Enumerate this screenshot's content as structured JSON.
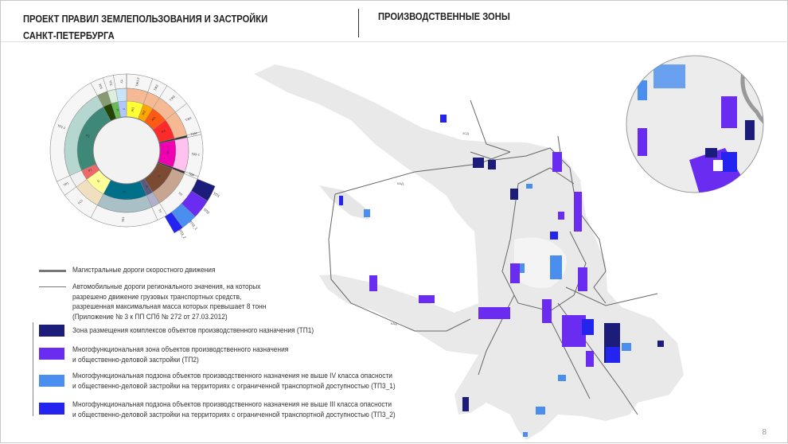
{
  "header": {
    "title_line1": "ПРОЕКТ ПРАВИЛ ЗЕМЛЕПОЛЬЗОВАНИЯ И ЗАСТРОЙКИ",
    "title_line2": "САНКТ-ПЕТЕРБУРГА",
    "section": "ПРОИЗВОДСТВЕННЫЕ ЗОНЫ"
  },
  "legend": {
    "road_express": "Магистральные дороги скоростного движения",
    "road_regional": [
      "Автомобильные дороги регионального значения, на которых",
      "разрешено движение грузовых транспортных средств,",
      "разрешенная максимальная масса которых превышает 8 тонн",
      "(Приложение № 3 к ПП СПб № 272 от 27.03.2012)"
    ],
    "zones": [
      {
        "color": "#1c1c7a",
        "lines": [
          "Зона размещения комплексов объектов производственного назначения (ТП1)"
        ]
      },
      {
        "color": "#6a2cf0",
        "lines": [
          "Многофункциональная зона объектов производственного назначения",
          "и общественно-деловой застройки (ТП2)"
        ]
      },
      {
        "color": "#4a8ef0",
        "lines": [
          "Многофункциональная подзона объектов производственного назначения не выше IV класса опасности",
          "и общественно-деловой застройки на территориях с ограниченной транспортной доступностью (ТП3_1)"
        ]
      },
      {
        "color": "#2424f0",
        "lines": [
          "Многофункциональная подзона объектов производственного назначения не выше III класса опасности",
          "и общественно-деловой застройки на территориях с ограниченной транспортной доступностью (ТП3_2)"
        ]
      }
    ]
  },
  "map_labels": {
    "kad": "КАД",
    "zsd": "ЗСД"
  },
  "page_number": "8",
  "chart_data": {
    "type": "sunburst",
    "segments": [
      {
        "label": "Ж1",
        "outer": "ТЖ1-2",
        "from": 0,
        "to": 20,
        "inner_color": "#ffff33",
        "outer_color": "#f5b993"
      },
      {
        "label": "Ж2",
        "outer": "ТЖ2",
        "from": 20,
        "to": 32,
        "inner_color": "#ffa500",
        "outer_color": "#f5b993"
      },
      {
        "label": "Ж3",
        "outer": "ТЖ3",
        "from": 32,
        "to": 52,
        "inner_color": "#ff5a14",
        "outer_color": "#f5b993"
      },
      {
        "label": "Ж4",
        "outer": "ТЖ4",
        "from": 52,
        "to": 76,
        "inner_color": "#ff2a2a",
        "outer_color": "#f5b993"
      },
      {
        "label": "",
        "outer": "ТСМ",
        "from": 76,
        "to": 78,
        "inner_color": "#333",
        "outer_color": "#333"
      },
      {
        "label": "Д",
        "outer": "ТД1-1",
        "from": 78,
        "to": 110,
        "inner_color": "#ee00b0",
        "outer_color": "#ffc2ee"
      },
      {
        "label": "",
        "outer": "ТД4",
        "from": 110,
        "to": 112,
        "inner_color": "#333",
        "outer_color": "#333"
      },
      {
        "label": "П",
        "outer": "ТП",
        "from": 112,
        "to": 148,
        "inner_color": "#7a4a32",
        "outer_color": "#c8a590"
      },
      {
        "label": "И",
        "outer": "ТУ",
        "from": 148,
        "to": 156,
        "inner_color": "#5a5a80",
        "outer_color": "#b0b0cc"
      },
      {
        "label": "К",
        "outer": "ТК1",
        "from": 156,
        "to": 208,
        "inner_color": "#006f8a",
        "outer_color": "#a8c0c6"
      },
      {
        "label": "С",
        "outer": "ТС1",
        "from": 208,
        "to": 234,
        "inner_color": "#ffff99",
        "outer_color": "#f0e0c0"
      },
      {
        "label": "Р1",
        "outer": "ТР1",
        "from": 234,
        "to": 246,
        "inner_color": "#ee6a6a",
        "outer_color": "#f0f0f0"
      },
      {
        "label": "Р2",
        "outer": "ТР2-1",
        "from": 246,
        "to": 332,
        "inner_color": "#3e8878",
        "outer_color": "#b6d6d0"
      },
      {
        "label": "Р3",
        "outer": "ТР3",
        "from": 332,
        "to": 342,
        "inner_color": "#224400",
        "outer_color": "#8a9a70"
      },
      {
        "label": "Л",
        "outer": "ТЛ1",
        "from": 342,
        "to": 350,
        "inner_color": "#66bb55",
        "outer_color": "#ddeedd"
      },
      {
        "label": "У",
        "outer": "ТУ",
        "from": 350,
        "to": 360,
        "inner_color": "#b0c8ff",
        "outer_color": "#c8e4f8"
      }
    ],
    "tp_wedges": [
      {
        "label": "ТП1",
        "from": 112,
        "to": 122,
        "color": "#1c1c7a"
      },
      {
        "label": "ТП2",
        "from": 122,
        "to": 134,
        "color": "#6a2cf0"
      },
      {
        "label": "ТП3_1",
        "from": 134,
        "to": 144,
        "color": "#4a8ef0"
      },
      {
        "label": "ТП3_2",
        "from": 144,
        "to": 150,
        "color": "#2424f0"
      }
    ]
  }
}
